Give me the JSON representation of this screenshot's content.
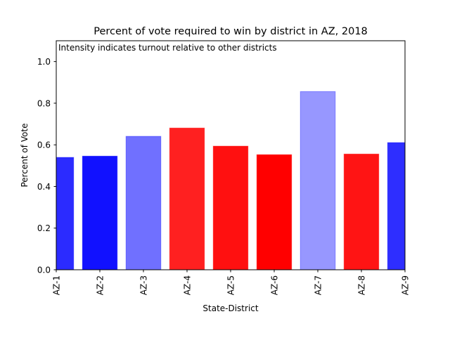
{
  "chart_data": {
    "type": "bar",
    "title": "Percent of vote required to win by district in AZ, 2018",
    "annotation": "Intensity indicates turnout relative to other districts",
    "xlabel": "State-District",
    "ylabel": "Percent of Vote",
    "ylim": [
      0,
      1.1
    ],
    "yticks": [
      0.0,
      0.2,
      0.4,
      0.6,
      0.8,
      1.0
    ],
    "ytick_labels": [
      "0.0",
      "0.2",
      "0.4",
      "0.6",
      "0.8",
      "1.0"
    ],
    "grid": false,
    "categories": [
      "AZ-1",
      "AZ-2",
      "AZ-3",
      "AZ-4",
      "AZ-5",
      "AZ-6",
      "AZ-7",
      "AZ-8",
      "AZ-9"
    ],
    "values": [
      0.54,
      0.546,
      0.641,
      0.681,
      0.594,
      0.553,
      0.856,
      0.556,
      0.611
    ],
    "party": [
      "D",
      "D",
      "D",
      "R",
      "R",
      "R",
      "D",
      "R",
      "D"
    ],
    "colors": [
      "#2b2bff",
      "#1111ff",
      "#7070ff",
      "#ff2020",
      "#ff1010",
      "#ff0000",
      "#9797ff",
      "#ff1414",
      "#2e2eff"
    ]
  }
}
